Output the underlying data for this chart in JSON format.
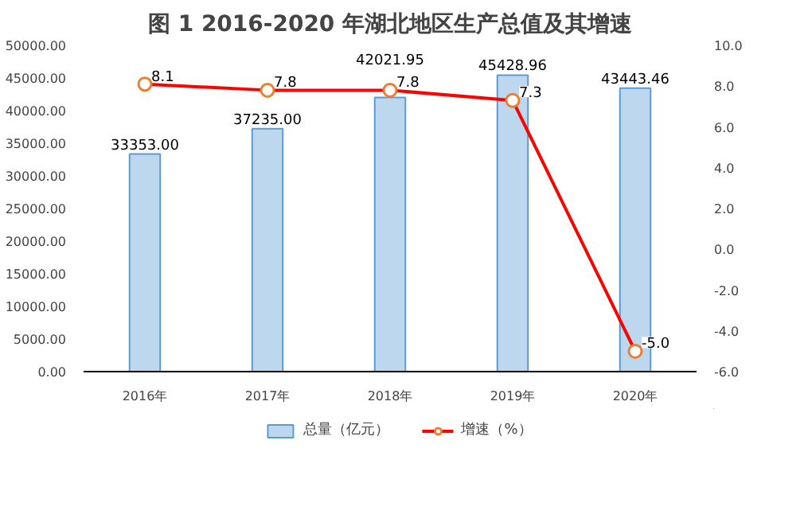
{
  "chart_data": {
    "type": "bar",
    "title": "图 1 2016-2020 年湖北地区生产总值及其增速",
    "categories": [
      "2016年",
      "2017年",
      "2018年",
      "2019年",
      "2020年"
    ],
    "series": [
      {
        "name": "总量（亿元）",
        "color": "#bdd7ee",
        "values": [
          33353.0,
          37235.0,
          42021.95,
          45428.96,
          43443.46
        ],
        "value_labels": [
          "33353.00",
          "37235.00",
          "42021.95",
          "45428.96",
          "43443.46"
        ]
      },
      {
        "name": "增速（%）",
        "type": "line",
        "axis": "y2",
        "color": "#ff0000",
        "marker": "circle",
        "values": [
          8.1,
          7.8,
          7.8,
          7.3,
          -5.0
        ],
        "value_labels": [
          "8.1",
          "7.8",
          "7.8",
          "7.3",
          "-5.0"
        ]
      }
    ],
    "ylim": [
      0,
      50000
    ],
    "yticks": [
      {
        "value": 0,
        "label": "0.00"
      },
      {
        "value": 5000,
        "label": "5000.00"
      },
      {
        "value": 10000,
        "label": "10000.00"
      },
      {
        "value": 15000,
        "label": "15000.00"
      },
      {
        "value": 20000,
        "label": "20000.00"
      },
      {
        "value": 25000,
        "label": "25000.00"
      },
      {
        "value": 30000,
        "label": "30000.00"
      },
      {
        "value": 35000,
        "label": "35000.00"
      },
      {
        "value": 40000,
        "label": "40000.00"
      },
      {
        "value": 45000,
        "label": "45000.00"
      },
      {
        "value": 50000,
        "label": "50000.00"
      }
    ],
    "y2lim": [
      -6,
      10
    ],
    "y2ticks": [
      {
        "value": -6,
        "label": "-6.0"
      },
      {
        "value": -4,
        "label": "-4.0"
      },
      {
        "value": -2,
        "label": "-2.0"
      },
      {
        "value": 0,
        "label": "0.0"
      },
      {
        "value": 2,
        "label": "2.0"
      },
      {
        "value": 4,
        "label": "4.0"
      },
      {
        "value": 6,
        "label": "6.0"
      },
      {
        "value": 8,
        "label": "8.0"
      },
      {
        "value": 10,
        "label": "10.0"
      }
    ],
    "legend": "bottom",
    "grid": false
  }
}
